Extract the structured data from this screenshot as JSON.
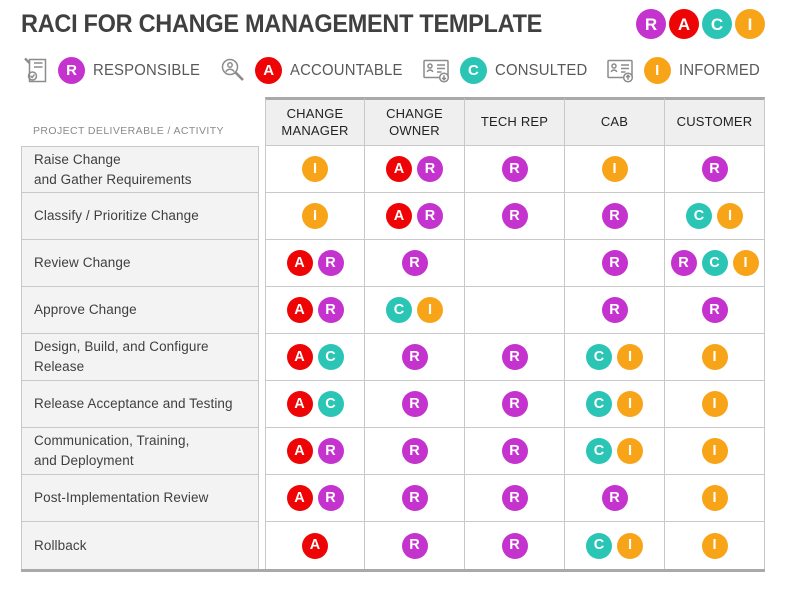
{
  "header": {
    "title": "RACI FOR CHANGE MANAGEMENT TEMPLATE",
    "logo_letters": [
      "R",
      "A",
      "C",
      "I"
    ]
  },
  "colors": {
    "R": "#C433CE",
    "A": "#EE0404",
    "C": "#2AC5B5",
    "I": "#F8A418"
  },
  "legend": {
    "items": [
      {
        "letter": "R",
        "label": "RESPONSIBLE",
        "icon": "note-check-icon"
      },
      {
        "letter": "A",
        "label": "ACCOUNTABLE",
        "icon": "magnifier-user-icon"
      },
      {
        "letter": "C",
        "label": "CONSULTED",
        "icon": "id-card-down-icon"
      },
      {
        "letter": "I",
        "label": "INFORMED",
        "icon": "id-card-up-icon"
      }
    ]
  },
  "table": {
    "deliverable_header": "PROJECT DELIVERABLE / ACTIVITY",
    "columns": [
      "CHANGE\nMANAGER",
      "CHANGE\nOWNER",
      "TECH REP",
      "CAB",
      "CUSTOMER"
    ],
    "rows": [
      {
        "activity": "Raise Change\nand Gather Requirements",
        "assignments": [
          [
            "I"
          ],
          [
            "A",
            "R"
          ],
          [
            "R"
          ],
          [
            "I"
          ],
          [
            "R"
          ]
        ]
      },
      {
        "activity": "Classify / Prioritize Change",
        "assignments": [
          [
            "I"
          ],
          [
            "A",
            "R"
          ],
          [
            "R"
          ],
          [
            "R"
          ],
          [
            "C",
            "I"
          ]
        ]
      },
      {
        "activity": "Review Change",
        "assignments": [
          [
            "A",
            "R"
          ],
          [
            "R"
          ],
          [],
          [
            "R"
          ],
          [
            "R",
            "C",
            "I"
          ]
        ]
      },
      {
        "activity": "Approve Change",
        "assignments": [
          [
            "A",
            "R"
          ],
          [
            "C",
            "I"
          ],
          [],
          [
            "R"
          ],
          [
            "R"
          ]
        ]
      },
      {
        "activity": "Design, Build, and Configure\nRelease",
        "assignments": [
          [
            "A",
            "C"
          ],
          [
            "R"
          ],
          [
            "R"
          ],
          [
            "C",
            "I"
          ],
          [
            "I"
          ]
        ]
      },
      {
        "activity": "Release Acceptance and Testing",
        "assignments": [
          [
            "A",
            "C"
          ],
          [
            "R"
          ],
          [
            "R"
          ],
          [
            "C",
            "I"
          ],
          [
            "I"
          ]
        ]
      },
      {
        "activity": "Communication, Training,\nand Deployment",
        "assignments": [
          [
            "A",
            "R"
          ],
          [
            "R"
          ],
          [
            "R"
          ],
          [
            "C",
            "I"
          ],
          [
            "I"
          ]
        ]
      },
      {
        "activity": "Post-Implementation Review",
        "assignments": [
          [
            "A",
            "R"
          ],
          [
            "R"
          ],
          [
            "R"
          ],
          [
            "R"
          ],
          [
            "I"
          ]
        ]
      },
      {
        "activity": "Rollback",
        "assignments": [
          [
            "A"
          ],
          [
            "R"
          ],
          [
            "R"
          ],
          [
            "C",
            "I"
          ],
          [
            "I"
          ]
        ]
      }
    ]
  }
}
